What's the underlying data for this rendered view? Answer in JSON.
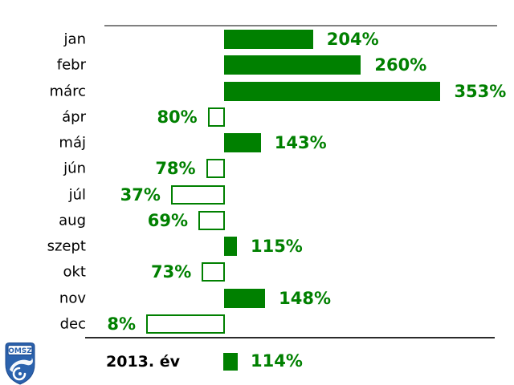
{
  "colors": {
    "green": "#008000",
    "top_rule": "#808080",
    "bottom_rule": "#2b2b2b",
    "logo_blue": "#2b62ad",
    "label_black": "#000000"
  },
  "chart_data": {
    "type": "bar",
    "orientation": "horizontal",
    "baseline_pct": 100,
    "categories": [
      "jan",
      "febr",
      "márc",
      "ápr",
      "máj",
      "jún",
      "júl",
      "aug",
      "szept",
      "okt",
      "nov",
      "dec"
    ],
    "values": [
      204,
      260,
      353,
      80,
      143,
      78,
      37,
      69,
      115,
      73,
      148,
      8
    ],
    "value_labels": [
      "204%",
      "260%",
      "353%",
      "80%",
      "143%",
      "78%",
      "37%",
      "69%",
      "115%",
      "73%",
      "148%",
      "8%"
    ],
    "legend": {
      "year_label": "2013. év",
      "value": 114,
      "value_label": "114%"
    }
  },
  "logo": {
    "text": "OMSZ"
  }
}
